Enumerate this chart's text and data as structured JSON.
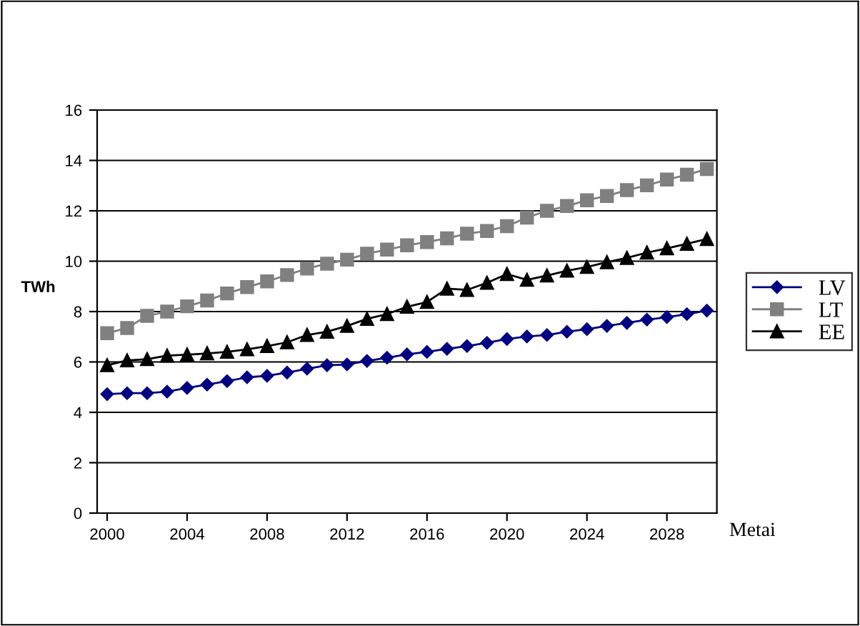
{
  "chart_data": {
    "type": "line",
    "ylabel": "TWh",
    "xlabel": "Metai",
    "x": [
      2000,
      2001,
      2002,
      2003,
      2004,
      2005,
      2006,
      2007,
      2008,
      2009,
      2010,
      2011,
      2012,
      2013,
      2014,
      2015,
      2016,
      2017,
      2018,
      2019,
      2020,
      2021,
      2022,
      2023,
      2024,
      2025,
      2026,
      2027,
      2028,
      2029,
      2030
    ],
    "series": [
      {
        "name": "LV",
        "color": "#000080",
        "marker": "diamond",
        "values": [
          4.72,
          4.76,
          4.76,
          4.82,
          4.97,
          5.1,
          5.24,
          5.39,
          5.45,
          5.58,
          5.73,
          5.87,
          5.9,
          6.04,
          6.17,
          6.3,
          6.4,
          6.52,
          6.63,
          6.76,
          6.91,
          7.01,
          7.07,
          7.2,
          7.3,
          7.43,
          7.55,
          7.68,
          7.78,
          7.9,
          8.04
        ]
      },
      {
        "name": "LT",
        "color": "#808080",
        "marker": "square",
        "values": [
          7.14,
          7.35,
          7.83,
          8.0,
          8.21,
          8.44,
          8.72,
          8.97,
          9.2,
          9.45,
          9.71,
          9.9,
          10.06,
          10.3,
          10.46,
          10.63,
          10.76,
          10.91,
          11.09,
          11.2,
          11.39,
          11.73,
          12.0,
          12.19,
          12.42,
          12.59,
          12.82,
          13.01,
          13.24,
          13.43,
          13.66
        ]
      },
      {
        "name": "EE",
        "color": "#000000",
        "marker": "triangle",
        "values": [
          5.87,
          6.06,
          6.11,
          6.25,
          6.29,
          6.34,
          6.4,
          6.5,
          6.63,
          6.78,
          7.07,
          7.2,
          7.43,
          7.71,
          7.9,
          8.19,
          8.38,
          8.91,
          8.86,
          9.14,
          9.49,
          9.26,
          9.43,
          9.62,
          9.77,
          9.96,
          10.13,
          10.34,
          10.51,
          10.69,
          10.88
        ]
      }
    ],
    "xlim": [
      1999.5,
      2030.5
    ],
    "xticks": [
      2000,
      2004,
      2008,
      2012,
      2016,
      2020,
      2024,
      2028
    ],
    "ylim": [
      0,
      16
    ],
    "yticks": [
      0,
      2,
      4,
      6,
      8,
      10,
      12,
      14,
      16
    ],
    "grid": "y",
    "legend": "right",
    "line_style": "solid"
  }
}
